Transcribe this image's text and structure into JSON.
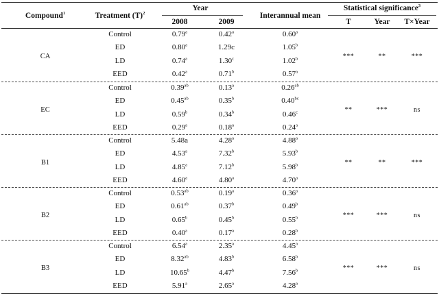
{
  "header": {
    "compound": "Compound",
    "compound_sup": "1",
    "treatment": "Treatment (T)",
    "treatment_sup": "2",
    "year": "Year",
    "y2008": "2008",
    "y2009": "2009",
    "interannual": "Interannual mean",
    "stat": "Statistical significance",
    "stat_sup": "3",
    "stat_t": "T",
    "stat_year": "Year",
    "stat_txy": "T×Year"
  },
  "groups": [
    {
      "compound": "CA",
      "sig": [
        "***",
        "**",
        "***"
      ],
      "rows": [
        {
          "treatment": "Control",
          "v2008": "0.79",
          "s2008": "a",
          "v2009": "0.42",
          "s2009": "a",
          "mean": "0.60",
          "smean": "a"
        },
        {
          "treatment": "ED",
          "v2008": "0.80",
          "s2008": "a",
          "v2009": "1.29c",
          "s2009": "",
          "mean": "1.05",
          "smean": "b"
        },
        {
          "treatment": "LD",
          "v2008": "0.74",
          "s2008": "a",
          "v2009": "1.30",
          "s2009": "c",
          "mean": "1.02",
          "smean": "b"
        },
        {
          "treatment": "EED",
          "v2008": "0.42",
          "s2008": "a",
          "v2009": "0.71",
          "s2009": "b",
          "mean": "0.57",
          "smean": "a"
        }
      ]
    },
    {
      "compound": "EC",
      "sig": [
        "**",
        "***",
        "ns"
      ],
      "rows": [
        {
          "treatment": "Control",
          "v2008": "0.39",
          "s2008": "ab",
          "v2009": "0.13",
          "s2009": "a",
          "mean": "0.26",
          "smean": "ab"
        },
        {
          "treatment": "ED",
          "v2008": "0.45",
          "s2008": "ab",
          "v2009": "0.35",
          "s2009": "b",
          "mean": "0.40",
          "smean": "bc"
        },
        {
          "treatment": "LD",
          "v2008": "0.59",
          "s2008": "b",
          "v2009": "0.34",
          "s2009": "b",
          "mean": "0.46",
          "smean": "c"
        },
        {
          "treatment": "EED",
          "v2008": "0.29",
          "s2008": "a",
          "v2009": "0.18",
          "s2009": "a",
          "mean": "0.24",
          "smean": "a"
        }
      ]
    },
    {
      "compound": "B1",
      "sig": [
        "**",
        "**",
        "***"
      ],
      "rows": [
        {
          "treatment": "Control",
          "v2008": "5.48a",
          "s2008": "",
          "v2009": "4.28",
          "s2009": "a",
          "mean": "4.88",
          "smean": "a"
        },
        {
          "treatment": "ED",
          "v2008": "4.53",
          "s2008": "a",
          "v2009": "7.32",
          "s2009": "b",
          "mean": "5.93",
          "smean": "b"
        },
        {
          "treatment": "LD",
          "v2008": "4.85",
          "s2008": "a",
          "v2009": "7.12",
          "s2009": "b",
          "mean": "5.98",
          "smean": "b"
        },
        {
          "treatment": "EED",
          "v2008": "4.60",
          "s2008": "a",
          "v2009": "4.80",
          "s2009": "a",
          "mean": "4.70",
          "smean": "a"
        }
      ]
    },
    {
      "compound": "B2",
      "sig": [
        "***",
        "***",
        "ns"
      ],
      "rows": [
        {
          "treatment": "Control",
          "v2008": "0.53",
          "s2008": "ab",
          "v2009": "0.19",
          "s2009": "a",
          "mean": "0.36",
          "smean": "a"
        },
        {
          "treatment": "ED",
          "v2008": "0.61",
          "s2008": "ab",
          "v2009": "0.37",
          "s2009": "b",
          "mean": "0.49",
          "smean": "b"
        },
        {
          "treatment": "LD",
          "v2008": "0.65",
          "s2008": "b",
          "v2009": "0.45",
          "s2009": "b",
          "mean": "0.55",
          "smean": "b"
        },
        {
          "treatment": "EED",
          "v2008": "0.40",
          "s2008": "a",
          "v2009": "0.17",
          "s2009": "a",
          "mean": "0.28",
          "smean": "b"
        }
      ]
    },
    {
      "compound": "B3",
      "sig": [
        "***",
        "***",
        "ns"
      ],
      "rows": [
        {
          "treatment": "Control",
          "v2008": "6.54",
          "s2008": "a",
          "v2009": "2.35",
          "s2009": "a",
          "mean": "4.45",
          "smean": "a"
        },
        {
          "treatment": "ED",
          "v2008": "8.32",
          "s2008": "ab",
          "v2009": "4.83",
          "s2009": "b",
          "mean": "6.58",
          "smean": "b"
        },
        {
          "treatment": "LD",
          "v2008": "10.65",
          "s2008": "b",
          "v2009": "4.47",
          "s2009": "b",
          "mean": "7.56",
          "smean": "b"
        },
        {
          "treatment": "EED",
          "v2008": "5.91",
          "s2008": "a",
          "v2009": "2.65",
          "s2009": "a",
          "mean": "4.28",
          "smean": "a"
        }
      ]
    }
  ]
}
